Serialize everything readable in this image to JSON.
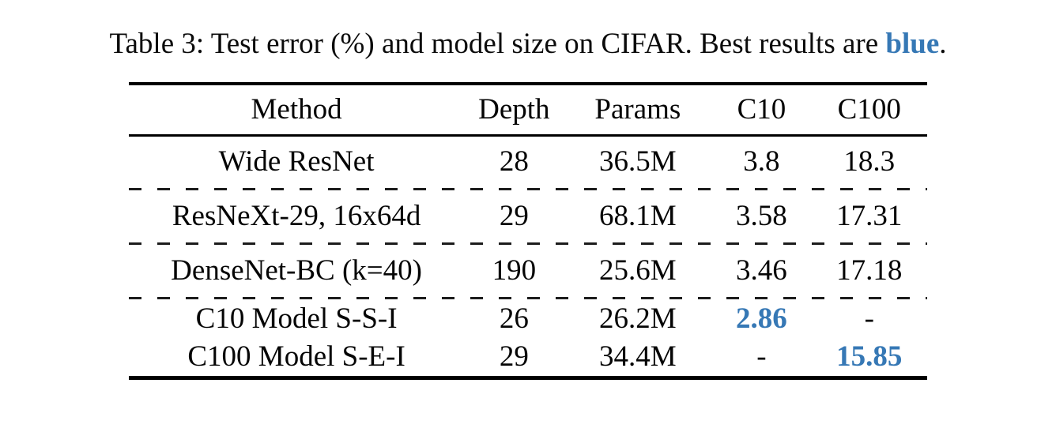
{
  "caption": {
    "prefix": "Table 3: Test error (%) and model size on CIFAR. Best results are ",
    "highlight": "blue",
    "suffix": "."
  },
  "colors": {
    "best_blue": "#3678b5",
    "text": "#000000",
    "background": "#ffffff"
  },
  "table": {
    "headers": [
      "Method",
      "Depth",
      "Params",
      "C10",
      "C100"
    ],
    "column_keys": [
      "method",
      "depth",
      "params",
      "c10",
      "c100"
    ],
    "groups": [
      {
        "rows": [
          {
            "method": "Wide ResNet",
            "depth": "28",
            "params": "36.5M",
            "c10": "3.8",
            "c100": "18.3",
            "best": []
          }
        ]
      },
      {
        "rows": [
          {
            "method": "ResNeXt-29, 16x64d",
            "depth": "29",
            "params": "68.1M",
            "c10": "3.58",
            "c100": "17.31",
            "best": []
          }
        ]
      },
      {
        "rows": [
          {
            "method": "DenseNet-BC (k=40)",
            "depth": "190",
            "params": "25.6M",
            "c10": "3.46",
            "c100": "17.18",
            "best": []
          }
        ]
      },
      {
        "rows": [
          {
            "method": "C10 Model S-S-I",
            "depth": "26",
            "params": "26.2M",
            "c10": "2.86",
            "c100": "-",
            "best": [
              "c10"
            ]
          },
          {
            "method": "C100 Model S-E-I",
            "depth": "29",
            "params": "34.4M",
            "c10": "-",
            "c100": "15.85",
            "best": [
              "c100"
            ]
          }
        ]
      }
    ]
  }
}
